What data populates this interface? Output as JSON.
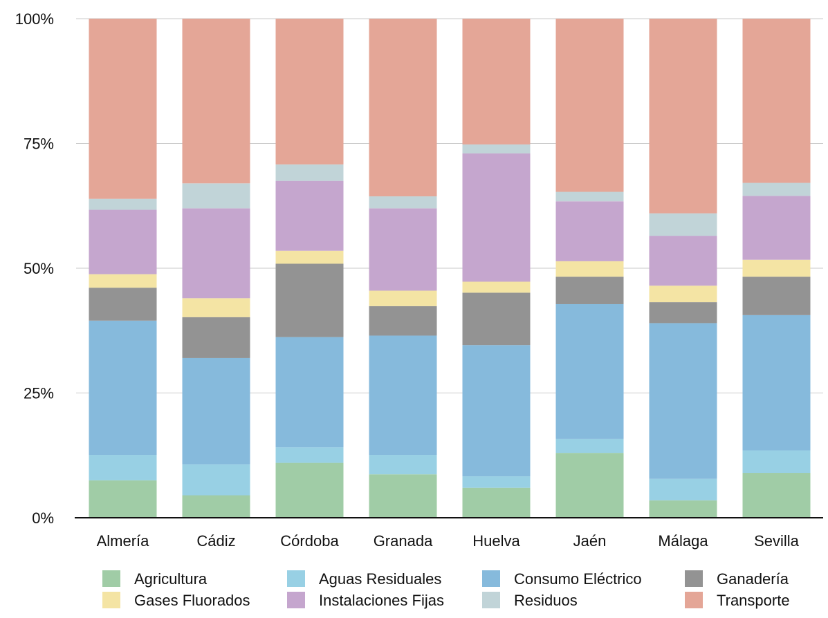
{
  "chart_data": {
    "type": "bar",
    "stacked": true,
    "normalized": true,
    "title": "",
    "xlabel": "",
    "ylabel": "",
    "ylim": [
      0,
      100
    ],
    "y_ticks": [
      0,
      25,
      50,
      75,
      100
    ],
    "y_tick_labels": [
      "0%",
      "25%",
      "50%",
      "75%",
      "100%"
    ],
    "grid": true,
    "legend_position": "bottom",
    "categories": [
      "Almería",
      "Cádiz",
      "Córdoba",
      "Granada",
      "Huelva",
      "Jaén",
      "Málaga",
      "Sevilla"
    ],
    "series": [
      {
        "name": "Agricultura",
        "color": "#a0cca6",
        "values": [
          7.5,
          4.5,
          11.0,
          8.7,
          6.0,
          13.0,
          3.5,
          9.0
        ]
      },
      {
        "name": "Aguas Residuales",
        "color": "#98d0e4",
        "values": [
          5.1,
          6.2,
          3.1,
          3.9,
          2.3,
          2.8,
          4.3,
          4.5
        ]
      },
      {
        "name": "Consumo Eléctrico",
        "color": "#86badc",
        "values": [
          26.9,
          21.3,
          22.1,
          23.9,
          26.3,
          27.0,
          31.2,
          27.1
        ]
      },
      {
        "name": "Ganadería",
        "color": "#939393",
        "values": [
          6.6,
          8.2,
          14.7,
          5.9,
          10.5,
          5.5,
          4.2,
          7.7
        ]
      },
      {
        "name": "Gases Fluorados",
        "color": "#f4e4a4",
        "values": [
          2.7,
          3.8,
          2.6,
          3.1,
          2.2,
          3.1,
          3.3,
          3.4
        ]
      },
      {
        "name": "Instalaciones Fijas",
        "color": "#c5a6ce",
        "values": [
          12.9,
          18.0,
          14.0,
          16.5,
          25.7,
          12.0,
          10.0,
          12.8
        ]
      },
      {
        "name": "Residuos",
        "color": "#c1d4d8",
        "values": [
          2.2,
          5.0,
          3.3,
          2.4,
          1.8,
          1.9,
          4.5,
          2.6
        ]
      },
      {
        "name": "Transporte",
        "color": "#e4a697",
        "values": [
          36.1,
          33.0,
          29.2,
          35.6,
          25.2,
          34.7,
          39.0,
          32.9
        ]
      }
    ]
  }
}
